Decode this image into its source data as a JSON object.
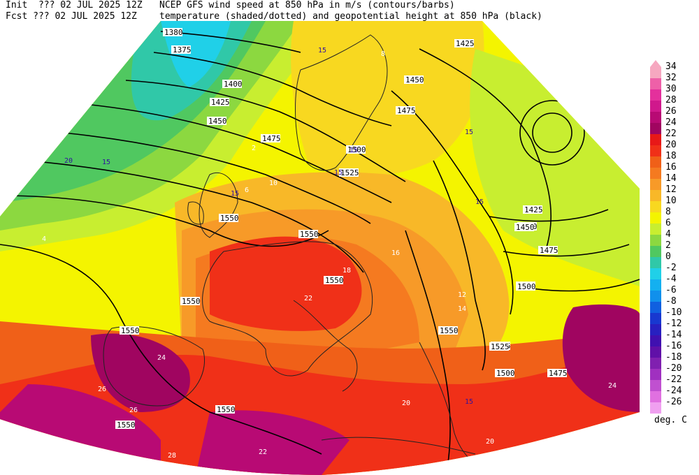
{
  "header": {
    "line1_left": "Init  ??? 02 JUL 2025 12Z",
    "line1_right": "NCEP GFS wind speed at 850 hPa in m/s (contours/barbs)",
    "line2_left": "Fcst ??? 02 JUL 2025 12Z",
    "line2_right": "temperature (shaded/dotted) and geopotential height at 850 hPa (black)"
  },
  "legend": {
    "units": "deg. C",
    "levels": [
      "34",
      "32",
      "30",
      "28",
      "26",
      "24",
      "22",
      "20",
      "18",
      "16",
      "14",
      "12",
      "10",
      "8",
      "6",
      "4",
      "2",
      "0",
      "-2",
      "-4",
      "-6",
      "-8",
      "-10",
      "-12",
      "-14",
      "-16",
      "-18",
      "-20",
      "-22",
      "-24",
      "-26"
    ],
    "colors": [
      "#f6a8c0",
      "#ee60a8",
      "#e4309c",
      "#d0188c",
      "#b80a74",
      "#a00560",
      "#e81818",
      "#f03018",
      "#f06018",
      "#f57a20",
      "#f79a28",
      "#f8b828",
      "#f8d820",
      "#f4f400",
      "#c8ee30",
      "#8cd840",
      "#50c860",
      "#30c8a8",
      "#20d0e8",
      "#14b0f0",
      "#1090ec",
      "#1060e0",
      "#1838d0",
      "#2820c0",
      "#4010b0",
      "#6010a8",
      "#8020b0",
      "#a030c0",
      "#c050d0",
      "#e070e0",
      "#f0a0f0"
    ]
  },
  "map": {
    "height_labels": [
      "1380",
      "1375",
      "1400",
      "1425",
      "1450",
      "1475",
      "1500",
      "1525",
      "1550",
      "1550",
      "1550",
      "1550",
      "1550",
      "1550",
      "1550",
      "1500",
      "1475",
      "1450",
      "1425",
      "1450",
      "1475",
      "1500",
      "1525",
      "1550",
      "1425",
      "1450",
      "1475",
      "1500",
      "1525"
    ],
    "temp_labels": [
      "8",
      "10",
      "12",
      "14",
      "16",
      "18",
      "20",
      "22",
      "24",
      "26",
      "28",
      "6",
      "4",
      "2",
      "20",
      "24",
      "26",
      "22"
    ],
    "wind_labels": [
      "15",
      "20",
      "15",
      "15",
      "15",
      "15",
      "15",
      "15",
      "15"
    ]
  }
}
